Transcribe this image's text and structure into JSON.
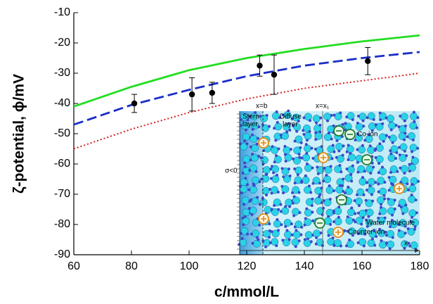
{
  "chart_data": {
    "type": "line",
    "xlabel": "c/mmol/L",
    "ylabel": "ζ-potential, ϕ/mV",
    "xlim": [
      60,
      180
    ],
    "xticks": [
      60,
      80,
      100,
      120,
      140,
      160,
      180
    ],
    "ylim": [
      -90,
      -10
    ],
    "yticks": [
      -90,
      -80,
      -70,
      -60,
      -50,
      -40,
      -30,
      -20,
      -10
    ],
    "series": [
      {
        "type": "line",
        "style": "solid",
        "color": "#22dd22",
        "x": [
          60,
          80,
          100,
          120,
          140,
          160,
          180
        ],
        "values": [
          -41,
          -34.5,
          -29,
          -25,
          -22,
          -19.5,
          -17.5
        ]
      },
      {
        "type": "line",
        "style": "dashed",
        "color": "#1a2ec8",
        "x": [
          60,
          80,
          100,
          120,
          140,
          160,
          180
        ],
        "values": [
          -47,
          -40.5,
          -35.5,
          -31,
          -27.5,
          -25,
          -23
        ]
      },
      {
        "type": "line",
        "style": "dotted",
        "color": "#d42020",
        "x": [
          60,
          80,
          100,
          120,
          140,
          160,
          180
        ],
        "values": [
          -55,
          -48.5,
          -43,
          -38.5,
          -35,
          -32.5,
          -30
        ]
      },
      {
        "type": "scatter",
        "color": "#000000",
        "x": [
          81,
          101,
          108,
          124.5,
          129.5,
          162
        ],
        "values": [
          -40,
          -37,
          -36.5,
          -27.5,
          -30.5,
          -26
        ],
        "errors": [
          3,
          5.5,
          3.5,
          3.5,
          6.5,
          4.5
        ]
      }
    ],
    "inset": {
      "stern_label": [
        "Stern",
        "layer"
      ],
      "diffuse_label": [
        "Diffuse",
        "layer"
      ],
      "xb_label": "x=b",
      "xx1_label": "x=x₁",
      "sigma_label": "σ<0",
      "coion_label": "Co-ion",
      "water_label": "Water molecule",
      "counterion_label": "Counter-ion",
      "x_axis_label": "x"
    }
  }
}
